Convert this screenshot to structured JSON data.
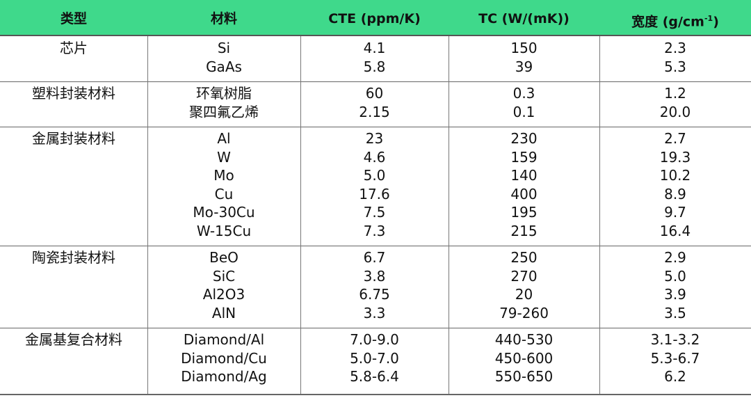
{
  "table": {
    "header": [
      "类型",
      "材料",
      "CTE (ppm/K)",
      "TC (W/(mK))",
      {
        "text": "宽度 (g/cm",
        "sup": "-1",
        "tail": ")"
      }
    ],
    "groups": [
      {
        "type": "芯片",
        "rows": [
          [
            "Si",
            "4.1",
            "150",
            "2.3"
          ],
          [
            "GaAs",
            "5.8",
            "39",
            "5.3"
          ]
        ]
      },
      {
        "type": "塑料封装材料",
        "rows": [
          [
            "环氧树脂",
            "60",
            "0.3",
            "1.2"
          ],
          [
            "聚四氟乙烯",
            "2.15",
            "0.1",
            "20.0"
          ]
        ]
      },
      {
        "type": "金属封装材料",
        "rows": [
          [
            "Al",
            "23",
            "230",
            "2.7"
          ],
          [
            "W",
            "4.6",
            "159",
            "19.3"
          ],
          [
            "Mo",
            "5.0",
            "140",
            "10.2"
          ],
          [
            "Cu",
            "17.6",
            "400",
            "8.9"
          ],
          [
            "Mo-30Cu",
            "7.5",
            "195",
            "9.7"
          ],
          [
            "W-15Cu",
            "7.3",
            "215",
            "16.4"
          ]
        ]
      },
      {
        "type": "陶瓷封装材料",
        "rows": [
          [
            "BeO",
            "6.7",
            "250",
            "2.9"
          ],
          [
            "SiC",
            "3.8",
            "270",
            "5.0"
          ],
          [
            "Al2O3",
            "6.75",
            "20",
            "3.9"
          ],
          [
            "AlN",
            "3.3",
            "79-260",
            "3.5"
          ]
        ]
      },
      {
        "type": "金属基复合材料",
        "rows": [
          [
            "Diamond/Al",
            "7.0-9.0",
            "440-530",
            "3.1-3.2"
          ],
          [
            "Diamond/Cu",
            "5.0-7.0",
            "450-600",
            "5.3-6.7"
          ],
          [
            "Diamond/Ag",
            "5.8-6.4",
            "550-650",
            "6.2"
          ]
        ]
      }
    ]
  }
}
